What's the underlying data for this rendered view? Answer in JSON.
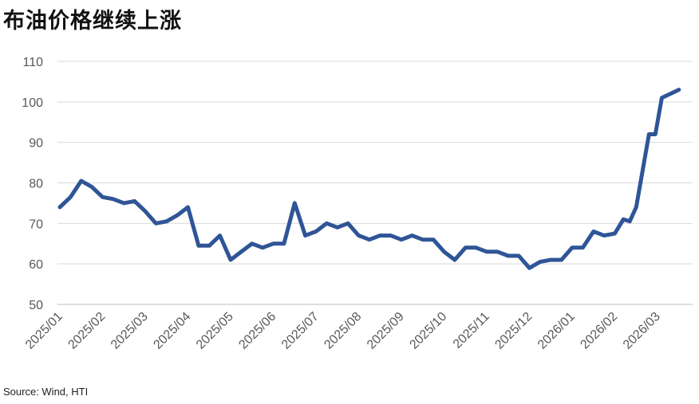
{
  "header": {
    "title": "布油价格继续上涨"
  },
  "footer": {
    "source": "Source: Wind, HTI"
  },
  "chart_data": {
    "type": "line",
    "title": "布油价格继续上涨",
    "xlabel": "",
    "ylabel": "",
    "ylim": [
      50,
      110
    ],
    "yticks": [
      "50",
      "60",
      "70",
      "80",
      "90",
      "100",
      "110"
    ],
    "xticks": [
      "2025/01",
      "2025/02",
      "2025/03",
      "2025/04",
      "2025/05",
      "2025/06",
      "2025/07",
      "2025/08",
      "2025/09",
      "2025/10",
      "2025/11",
      "2025/12",
      "2026/01",
      "2026/02",
      "2026/03"
    ],
    "grid": "horizontal",
    "legend": "none",
    "line_color": "#2F5597",
    "series": [
      {
        "x": [
          0,
          0.25,
          0.5,
          0.75,
          1.0,
          1.25,
          1.5,
          1.75,
          2.0,
          2.25,
          2.5,
          2.75,
          3.0,
          3.25,
          3.5,
          3.75,
          4.0,
          4.25,
          4.5,
          4.75,
          5.0,
          5.25,
          5.5,
          5.75,
          6.0,
          6.25,
          6.5,
          6.75,
          7.0,
          7.25,
          7.5,
          7.75,
          8.0,
          8.25,
          8.5,
          8.75,
          9.0,
          9.25,
          9.5,
          9.75,
          10.0,
          10.25,
          10.5,
          10.75,
          11.0,
          11.25,
          11.5,
          11.75,
          12.0,
          12.25,
          12.5,
          12.75,
          13.0,
          13.2,
          13.35,
          13.5,
          13.65,
          13.8,
          13.95,
          14.1,
          14.3,
          14.5
        ],
        "values": [
          74,
          76.5,
          80.5,
          79,
          76.5,
          76,
          75,
          75.5,
          73,
          70,
          70.5,
          72,
          74,
          64.5,
          64.5,
          67,
          61,
          63,
          65,
          64,
          65,
          65,
          75,
          67,
          68,
          70,
          69,
          70,
          67,
          66,
          67,
          67,
          66,
          67,
          66,
          66,
          63,
          61,
          64,
          64,
          63,
          63,
          62,
          62,
          59,
          60.5,
          61,
          61,
          64,
          64,
          68,
          67,
          67.5,
          71,
          70.5,
          74,
          83,
          92,
          92,
          101,
          102,
          103
        ]
      }
    ]
  }
}
